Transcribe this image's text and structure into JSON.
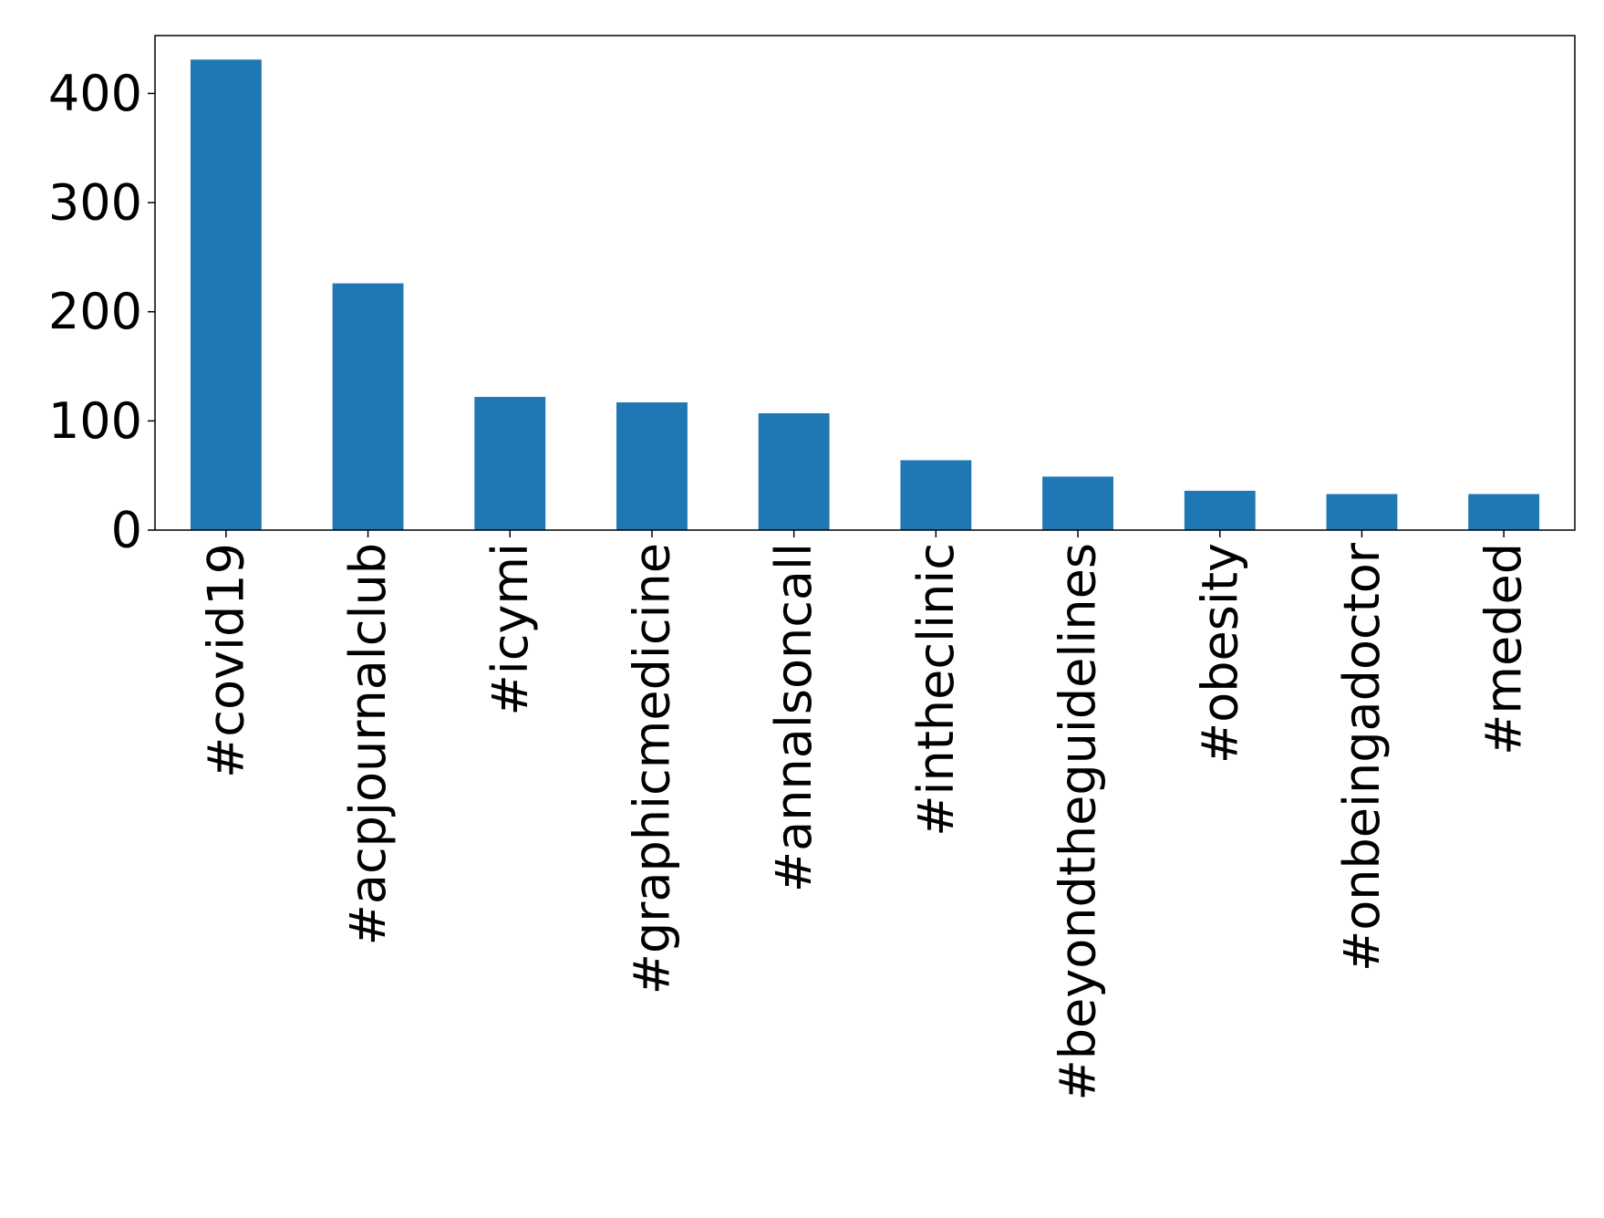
{
  "chart_data": {
    "type": "bar",
    "categories": [
      "#covid19",
      "#acpjournalclub",
      "#icymi",
      "#graphicmedicine",
      "#annalsoncall",
      "#intheclinic",
      "#beyondtheguidelines",
      "#obesity",
      "#onbeingadoctor",
      "#meded"
    ],
    "values": [
      431,
      226,
      122,
      117,
      107,
      64,
      49,
      36,
      33,
      33
    ],
    "color": "#1f77b4",
    "ylim": [
      0,
      453
    ],
    "yticks": [
      0,
      100,
      200,
      300,
      400
    ],
    "grid": false
  }
}
